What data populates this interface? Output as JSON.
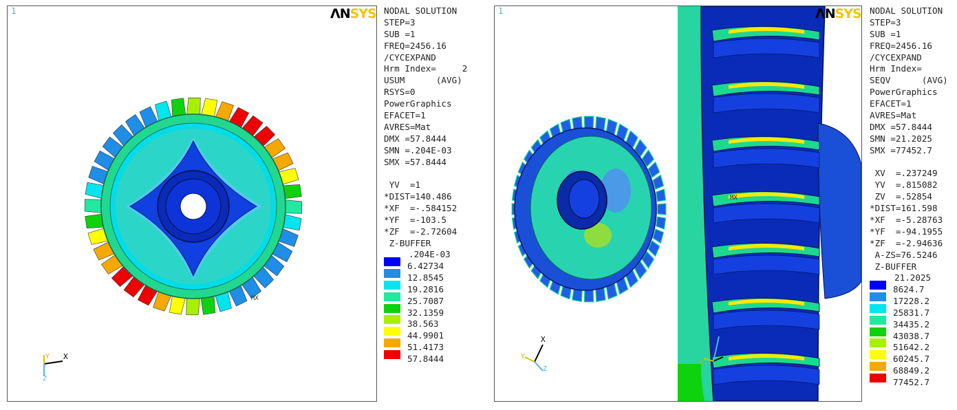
{
  "left": {
    "viewport_number": "1",
    "logo": {
      "part1": "ΛN",
      "part2": "SYS"
    },
    "info_lines": [
      "NODAL SOLUTION",
      "STEP=3",
      "SUB =1",
      "FREQ=2456.16",
      "/CYCEXPAND",
      "Hrm Index=     2",
      "USUM      (AVG)",
      "RSYS=0",
      "PowerGraphics",
      "EFACET=1",
      "AVRES=Mat",
      "DMX =57.8444",
      "SMN =.204E-03",
      "SMX =57.8444",
      "",
      " YV  =1",
      "*DIST=140.486",
      "*XF  =-.584152",
      "*YF  =-103.5",
      "*ZF  =-2.72604",
      " Z-BUFFER"
    ],
    "legend_min": ".204E-03",
    "legend": [
      {
        "label": "6.42734",
        "color": "#0000ff"
      },
      {
        "label": "12.8545",
        "color": "#1e8ee6"
      },
      {
        "label": "19.2816",
        "color": "#00e5ee"
      },
      {
        "label": "25.7087",
        "color": "#22e8a2"
      },
      {
        "label": "32.1359",
        "color": "#0ed20e"
      },
      {
        "label": "38.563",
        "color": "#a8f000"
      },
      {
        "label": "44.9901",
        "color": "#ffff00"
      },
      {
        "label": "51.4173",
        "color": "#f5a800"
      },
      {
        "label": "57.8444",
        "color": "#ee0000"
      }
    ],
    "mx_label": "MX",
    "triad": {
      "y": "Y",
      "x": "X",
      "z": "Z"
    }
  },
  "right": {
    "viewport_number": "1",
    "logo": {
      "part1": "ΛN",
      "part2": "SYS"
    },
    "info_lines": [
      "NODAL SOLUTION",
      "STEP=3",
      "SUB =1",
      "FREQ=2456.16",
      "/CYCEXPAND",
      "Hrm Index=",
      "SEQV      (AVG)",
      "PowerGraphics",
      "EFACET=1",
      "AVRES=Mat",
      "DMX =57.8444",
      "SMN =21.2025",
      "SMX =77452.7",
      "",
      " XV  =.237249",
      " YV  =.815082",
      " ZV  =.52854",
      "*DIST=161.598",
      "*XF  =-5.28763",
      "*YF  =-94.1955",
      "*ZF  =-2.94636",
      " A-ZS=76.5246",
      " Z-BUFFER"
    ],
    "legend_min": "21.2025",
    "legend": [
      {
        "label": "8624.7",
        "color": "#0000ff"
      },
      {
        "label": "17228.2",
        "color": "#1e8ee6"
      },
      {
        "label": "25831.7",
        "color": "#00e5ee"
      },
      {
        "label": "34435.2",
        "color": "#22e8a2"
      },
      {
        "label": "43038.7",
        "color": "#0ed20e"
      },
      {
        "label": "51642.2",
        "color": "#a8f000"
      },
      {
        "label": "60245.7",
        "color": "#ffff00"
      },
      {
        "label": "68849.2",
        "color": "#f5a800"
      },
      {
        "label": "77452.7",
        "color": "#ee0000"
      }
    ],
    "mx_label": "MX",
    "triad": {
      "x": "X",
      "y": "Y",
      "z": "Z"
    }
  }
}
